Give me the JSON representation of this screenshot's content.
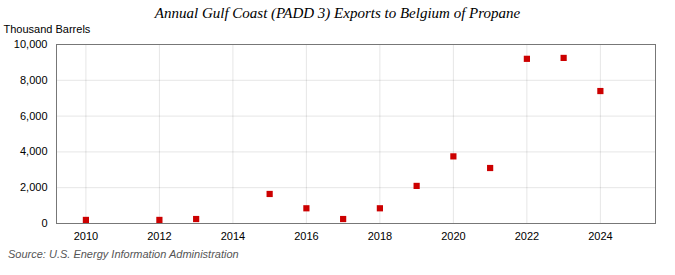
{
  "chart_data": {
    "type": "scatter",
    "title": "Annual Gulf Coast (PADD 3) Exports to Belgium of Propane",
    "ylabel": "Thousand Barrels",
    "annotation": "Source: U.S. Energy Information Administration",
    "x": [
      2010,
      2012,
      2013,
      2015,
      2016,
      2017,
      2018,
      2019,
      2020,
      2021,
      2022,
      2023,
      2024
    ],
    "values": [
      200,
      200,
      250,
      1650,
      850,
      250,
      850,
      2100,
      3750,
      3100,
      9200,
      9250,
      7400
    ],
    "color": "#cc0000",
    "marker": "square",
    "xlim": [
      2009.2,
      2025.5
    ],
    "xticks": [
      2010,
      2012,
      2014,
      2016,
      2018,
      2020,
      2022,
      2024
    ],
    "ylim": [
      0,
      10000
    ],
    "yticks": [
      0,
      {
        "value": 2000,
        "label": "2,000"
      },
      {
        "value": 4000,
        "label": "4,000"
      },
      {
        "value": 6000,
        "label": "6,000"
      },
      {
        "value": 8000,
        "label": "8,000"
      },
      {
        "value": 10000,
        "label": "10,000"
      }
    ],
    "grid": true
  }
}
